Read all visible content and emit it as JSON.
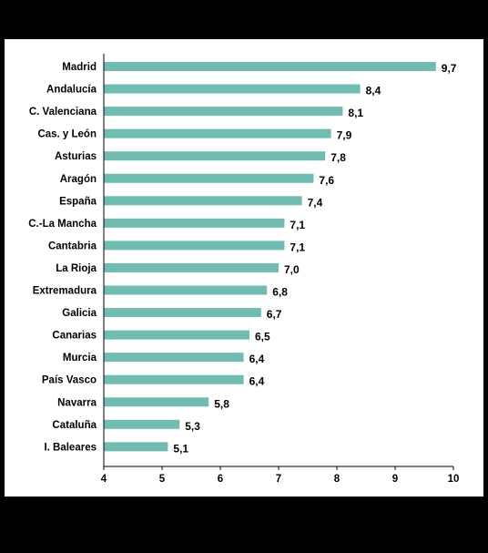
{
  "header": {
    "title": "",
    "subtitle": ""
  },
  "chart_data": {
    "type": "bar",
    "orientation": "horizontal",
    "categories": [
      "Madrid",
      "Andalucía",
      "C. Valenciana",
      "Cas. y León",
      "Asturias",
      "Aragón",
      "España",
      "C.-La Mancha",
      "Cantabria",
      "La Rioja",
      "Extremadura",
      "Galicia",
      "Canarias",
      "Murcia",
      "País Vasco",
      "Navarra",
      "Cataluña",
      "I. Baleares"
    ],
    "values": [
      9.7,
      8.4,
      8.1,
      7.9,
      7.8,
      7.6,
      7.4,
      7.1,
      7.1,
      7.0,
      6.8,
      6.7,
      6.5,
      6.4,
      6.4,
      5.8,
      5.3,
      5.1
    ],
    "value_labels": [
      "9,7",
      "8,4",
      "8,1",
      "7,9",
      "7,8",
      "7,6",
      "7,4",
      "7,1",
      "7,1",
      "7,0",
      "6,8",
      "6,7",
      "6,5",
      "6,4",
      "6,4",
      "5,8",
      "5,3",
      "5,1"
    ],
    "xlim": [
      4,
      10
    ],
    "xticks": [
      4,
      5,
      6,
      7,
      8,
      9,
      10
    ],
    "xtick_labels": [
      "4",
      "5",
      "6",
      "7",
      "8",
      "9",
      "10"
    ],
    "bar_color": "#6fbcb3",
    "grid": false,
    "legend": "none",
    "xlabel": "",
    "ylabel": ""
  },
  "footer": {
    "note": "",
    "source": ""
  }
}
